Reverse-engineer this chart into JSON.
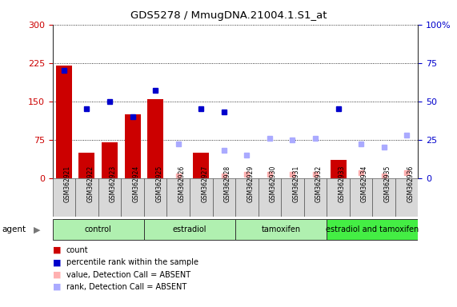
{
  "title": "GDS5278 / MmugDNA.21004.1.S1_at",
  "samples": [
    "GSM362921",
    "GSM362922",
    "GSM362923",
    "GSM362924",
    "GSM362925",
    "GSM362926",
    "GSM362927",
    "GSM362928",
    "GSM362929",
    "GSM362930",
    "GSM362931",
    "GSM362932",
    "GSM362933",
    "GSM362934",
    "GSM362935",
    "GSM362936"
  ],
  "count_values": [
    220,
    50,
    70,
    125,
    155,
    null,
    50,
    null,
    null,
    null,
    null,
    null,
    35,
    null,
    null,
    null
  ],
  "rank_present": [
    70,
    45,
    50,
    40,
    57,
    null,
    45,
    43,
    null,
    null,
    null,
    null,
    45,
    null,
    null,
    null
  ],
  "value_absent": [
    null,
    null,
    null,
    null,
    null,
    5,
    null,
    5,
    7,
    8,
    7,
    8,
    null,
    10,
    5,
    10
  ],
  "rank_absent": [
    null,
    null,
    null,
    null,
    null,
    22,
    null,
    18,
    15,
    26,
    25,
    26,
    null,
    22,
    20,
    28
  ],
  "groups": [
    {
      "label": "control",
      "start": 0,
      "end": 4,
      "color": "#b0f0b0"
    },
    {
      "label": "estradiol",
      "start": 4,
      "end": 8,
      "color": "#b0f0b0"
    },
    {
      "label": "tamoxifen",
      "start": 8,
      "end": 12,
      "color": "#b0f0b0"
    },
    {
      "label": "estradiol and tamoxifen",
      "start": 12,
      "end": 16,
      "color": "#44ee44"
    }
  ],
  "ylim_left": [
    0,
    300
  ],
  "ylim_right": [
    0,
    100
  ],
  "left_ticks": [
    0,
    75,
    150,
    225,
    300
  ],
  "right_ticks": [
    0,
    25,
    50,
    75,
    100
  ],
  "bar_color": "#cc0000",
  "rank_present_color": "#0000cc",
  "value_absent_color": "#ffb0b0",
  "rank_absent_color": "#aaaaff",
  "grid_color": "#000000",
  "bg_color": "#ffffff"
}
